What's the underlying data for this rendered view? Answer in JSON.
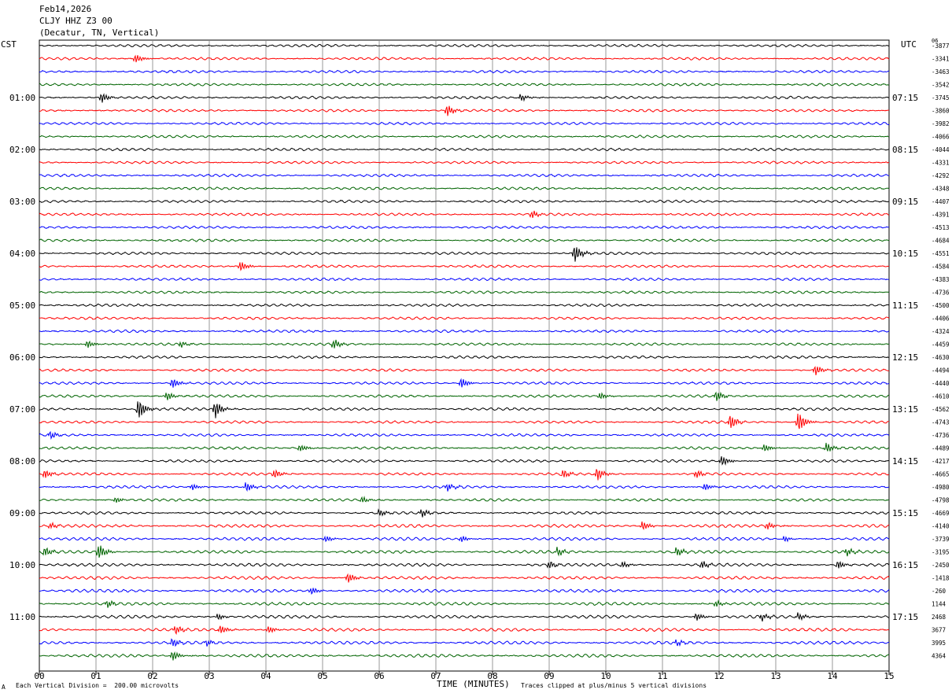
{
  "header": {
    "date": "Feb14,2026",
    "station": "CLJY HHZ Z3 00",
    "location": "(Decatur, TN, Vertical)"
  },
  "left_timezone": "CST",
  "right_timezone": "UTC",
  "corner_code": "06",
  "footer": {
    "scale_note": "Each Vertical Division =  200.00 microvolts",
    "clip_note": "Traces clipped at plus/minus 5 vertical divisions",
    "mark": "A"
  },
  "colors": {
    "black": "#000000",
    "red": "#ff0000",
    "blue": "#0000ff",
    "green": "#006400",
    "grid": "#808080"
  },
  "chart_data": {
    "type": "line",
    "title": "",
    "xlabel": "TIME (MINUTES)",
    "x_ticks": [
      "00",
      "01",
      "02",
      "03",
      "04",
      "05",
      "06",
      "07",
      "08",
      "09",
      "10",
      "11",
      "12",
      "13",
      "14",
      "15"
    ],
    "xlim": [
      0,
      15
    ],
    "trace_color_cycle": [
      "black",
      "red",
      "blue",
      "green"
    ],
    "left_hour_labels": [
      {
        "row": 4,
        "label": "01:00"
      },
      {
        "row": 8,
        "label": "02:00"
      },
      {
        "row": 12,
        "label": "03:00"
      },
      {
        "row": 16,
        "label": "04:00"
      },
      {
        "row": 20,
        "label": "05:00"
      },
      {
        "row": 24,
        "label": "06:00"
      },
      {
        "row": 28,
        "label": "07:00"
      },
      {
        "row": 32,
        "label": "08:00"
      },
      {
        "row": 36,
        "label": "09:00"
      },
      {
        "row": 40,
        "label": "10:00"
      },
      {
        "row": 44,
        "label": "11:00"
      }
    ],
    "right_hour_labels": [
      {
        "row": 4,
        "label": "07:15"
      },
      {
        "row": 8,
        "label": "08:15"
      },
      {
        "row": 12,
        "label": "09:15"
      },
      {
        "row": 16,
        "label": "10:15"
      },
      {
        "row": 20,
        "label": "11:15"
      },
      {
        "row": 24,
        "label": "12:15"
      },
      {
        "row": 28,
        "label": "13:15"
      },
      {
        "row": 32,
        "label": "14:15"
      },
      {
        "row": 36,
        "label": "15:15"
      },
      {
        "row": 40,
        "label": "16:15"
      },
      {
        "row": 44,
        "label": "17:15"
      }
    ],
    "trace_offsets": [
      "-3877",
      "-3341",
      "-3463",
      "-3542",
      "-3745",
      "-3860",
      "-3982",
      "-4066",
      "-4044",
      "-4331",
      "-4292",
      "-4348",
      "-4407",
      "-4391",
      "-4513",
      "-4684",
      "-4551",
      "-4584",
      "-4383",
      "-4736",
      "-4500",
      "-4406",
      "-4324",
      "-4459",
      "-4630",
      "-4494",
      "-4440",
      "-4610",
      "-4562",
      "-4743",
      "-4736",
      "-4489",
      "-4217",
      "-4665",
      "-4980",
      "-4798",
      "-4669",
      "-4140",
      "-3739",
      "-3195",
      "-2450",
      "-1418",
      "-260",
      "1144",
      "2468",
      "3677",
      "3995",
      "4364"
    ],
    "events": [
      {
        "row": 1,
        "min": 1.7,
        "amp": 6
      },
      {
        "row": 4,
        "min": 1.1,
        "amp": 7
      },
      {
        "row": 4,
        "min": 8.5,
        "amp": 5
      },
      {
        "row": 5,
        "min": 7.2,
        "amp": 8
      },
      {
        "row": 13,
        "min": 8.7,
        "amp": 5
      },
      {
        "row": 16,
        "min": 9.45,
        "amp": 12
      },
      {
        "row": 17,
        "min": 3.55,
        "amp": 7
      },
      {
        "row": 23,
        "min": 0.85,
        "amp": 5
      },
      {
        "row": 23,
        "min": 2.5,
        "amp": 4
      },
      {
        "row": 23,
        "min": 5.2,
        "amp": 7
      },
      {
        "row": 25,
        "min": 13.7,
        "amp": 7
      },
      {
        "row": 26,
        "min": 2.35,
        "amp": 7
      },
      {
        "row": 26,
        "min": 7.45,
        "amp": 7
      },
      {
        "row": 27,
        "min": 2.25,
        "amp": 6
      },
      {
        "row": 27,
        "min": 11.95,
        "amp": 7
      },
      {
        "row": 27,
        "min": 9.9,
        "amp": 5
      },
      {
        "row": 28,
        "min": 1.75,
        "amp": 14
      },
      {
        "row": 28,
        "min": 3.1,
        "amp": 12
      },
      {
        "row": 29,
        "min": 12.2,
        "amp": 10
      },
      {
        "row": 29,
        "min": 13.4,
        "amp": 14
      },
      {
        "row": 30,
        "min": 0.2,
        "amp": 5
      },
      {
        "row": 31,
        "min": 4.6,
        "amp": 5
      },
      {
        "row": 31,
        "min": 13.9,
        "amp": 7
      },
      {
        "row": 31,
        "min": 12.8,
        "amp": 5
      },
      {
        "row": 32,
        "min": 12.05,
        "amp": 7
      },
      {
        "row": 33,
        "min": 0.1,
        "amp": 6
      },
      {
        "row": 33,
        "min": 4.15,
        "amp": 6
      },
      {
        "row": 33,
        "min": 9.25,
        "amp": 6
      },
      {
        "row": 33,
        "min": 9.85,
        "amp": 9
      },
      {
        "row": 33,
        "min": 11.6,
        "amp": 5
      },
      {
        "row": 34,
        "min": 3.65,
        "amp": 6
      },
      {
        "row": 34,
        "min": 2.7,
        "amp": 4
      },
      {
        "row": 34,
        "min": 7.2,
        "amp": 5
      },
      {
        "row": 34,
        "min": 11.75,
        "amp": 5
      },
      {
        "row": 35,
        "min": 1.35,
        "amp": 4
      },
      {
        "row": 35,
        "min": 5.7,
        "amp": 4
      },
      {
        "row": 36,
        "min": 6.0,
        "amp": 5
      },
      {
        "row": 36,
        "min": 6.75,
        "amp": 6
      },
      {
        "row": 37,
        "min": 0.2,
        "amp": 4
      },
      {
        "row": 37,
        "min": 10.65,
        "amp": 6
      },
      {
        "row": 37,
        "min": 12.85,
        "amp": 5
      },
      {
        "row": 38,
        "min": 5.05,
        "amp": 4
      },
      {
        "row": 38,
        "min": 7.45,
        "amp": 4
      },
      {
        "row": 38,
        "min": 13.15,
        "amp": 4
      },
      {
        "row": 39,
        "min": 0.1,
        "amp": 6
      },
      {
        "row": 39,
        "min": 1.05,
        "amp": 10
      },
      {
        "row": 39,
        "min": 9.15,
        "amp": 6
      },
      {
        "row": 39,
        "min": 11.25,
        "amp": 6
      },
      {
        "row": 39,
        "min": 14.25,
        "amp": 5
      },
      {
        "row": 40,
        "min": 9.0,
        "amp": 5
      },
      {
        "row": 40,
        "min": 10.3,
        "amp": 4
      },
      {
        "row": 40,
        "min": 11.7,
        "amp": 5
      },
      {
        "row": 40,
        "min": 14.1,
        "amp": 6
      },
      {
        "row": 41,
        "min": 5.45,
        "amp": 7
      },
      {
        "row": 42,
        "min": 4.8,
        "amp": 5
      },
      {
        "row": 43,
        "min": 1.2,
        "amp": 5
      },
      {
        "row": 43,
        "min": 11.95,
        "amp": 4
      },
      {
        "row": 44,
        "min": 3.15,
        "amp": 4
      },
      {
        "row": 44,
        "min": 11.6,
        "amp": 5
      },
      {
        "row": 44,
        "min": 12.75,
        "amp": 5
      },
      {
        "row": 44,
        "min": 13.4,
        "amp": 5
      },
      {
        "row": 45,
        "min": 2.4,
        "amp": 6
      },
      {
        "row": 45,
        "min": 3.2,
        "amp": 6
      },
      {
        "row": 45,
        "min": 4.05,
        "amp": 5
      },
      {
        "row": 46,
        "min": 2.35,
        "amp": 6
      },
      {
        "row": 46,
        "min": 2.95,
        "amp": 4
      },
      {
        "row": 46,
        "min": 11.25,
        "amp": 4
      },
      {
        "row": 47,
        "min": 2.35,
        "amp": 7
      }
    ]
  }
}
